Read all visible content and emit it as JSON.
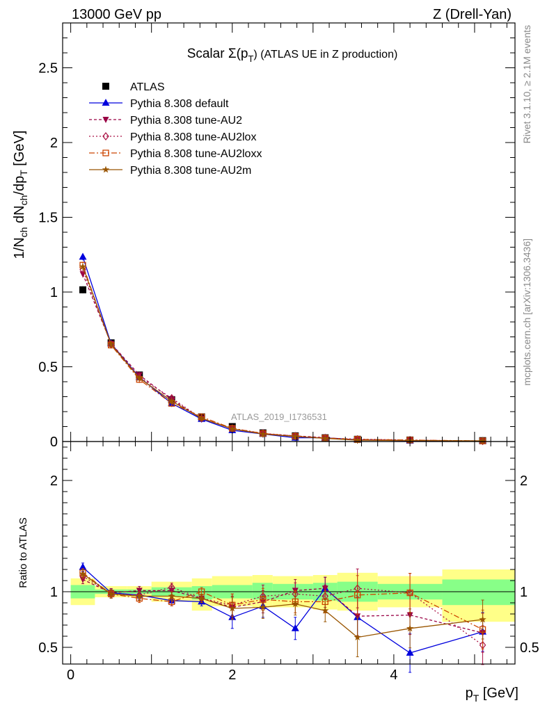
{
  "header": {
    "left": "13000 GeV pp",
    "right": "Z (Drell-Yan)"
  },
  "side_labels": {
    "rivet": "Rivet 3.1.10, ≥ 2.1M events",
    "mcplots": "mcplots.cern.ch [arXiv:1306.3436]"
  },
  "chart_data": [
    {
      "type": "line",
      "title": "Scalar Σ(p_T) (ATLAS UE in Z production)",
      "title_parts": {
        "main": "Scalar Σ(p",
        "sub": "T",
        "tail": ") (ATLAS UE in Z production)"
      },
      "ylabel": "1/N_ch dN_ch/dp_T [GeV]",
      "ylabel_parts": {
        "a": "1/N",
        "a_sub": "ch",
        "b": " dN",
        "b_sub": "ch",
        "c": "/dp",
        "c_sub": "T",
        "d": " [GeV]"
      },
      "xlim": [
        -0.1,
        5.5
      ],
      "ylim": [
        0,
        2.8
      ],
      "yticks": [
        0,
        0.5,
        1,
        1.5,
        2,
        2.5
      ],
      "ytick_labels": [
        "0",
        "0.5",
        "1",
        "1.5",
        "2",
        "2.5"
      ],
      "watermark": "ATLAS_2019_I1736531",
      "legend_position": "top-left",
      "x": [
        0.15,
        0.5,
        0.85,
        1.25,
        1.62,
        2.0,
        2.38,
        2.78,
        3.15,
        3.55,
        4.2,
        5.1
      ],
      "series": [
        {
          "name": "ATLAS",
          "color": "#000000",
          "marker": "square",
          "dash": "none",
          "values": [
            1.015,
            0.66,
            0.445,
            0.28,
            0.165,
            0.1,
            0.058,
            0.038,
            0.025,
            0.015,
            0.01,
            0.006
          ]
        },
        {
          "name": "Pythia 8.308 default",
          "color": "#0000dd",
          "marker": "triangle-up",
          "dash": "none",
          "values": [
            1.235,
            0.655,
            0.43,
            0.255,
            0.15,
            0.075,
            0.05,
            0.025,
            0.025,
            0.012,
            0.0045,
            0.0037
          ]
        },
        {
          "name": "Pythia 8.308 tune-AU2",
          "color": "#990044",
          "marker": "triangle-down",
          "dash": "4,3",
          "values": [
            1.12,
            0.655,
            0.445,
            0.28,
            0.155,
            0.085,
            0.052,
            0.038,
            0.026,
            0.0115,
            0.0079,
            0.004
          ]
        },
        {
          "name": "Pythia 8.308 tune-AU2lox",
          "color": "#aa1144",
          "marker": "diamond-open",
          "dash": "2,3",
          "values": [
            1.15,
            0.65,
            0.43,
            0.29,
            0.155,
            0.088,
            0.055,
            0.037,
            0.024,
            0.0155,
            0.0099,
            0.0032
          ]
        },
        {
          "name": "Pythia 8.308 tune-AU2loxx",
          "color": "#cc4400",
          "marker": "square-open",
          "dash": "8,3,2,3",
          "values": [
            1.18,
            0.645,
            0.415,
            0.255,
            0.165,
            0.088,
            0.054,
            0.035,
            0.023,
            0.0146,
            0.0099,
            0.004
          ]
        },
        {
          "name": "Pythia 8.308 tune-AU2m",
          "color": "#995500",
          "marker": "star",
          "dash": "none",
          "values": [
            1.17,
            0.65,
            0.425,
            0.27,
            0.155,
            0.085,
            0.05,
            0.034,
            0.021,
            0.0088,
            0.0067,
            0.0045
          ]
        }
      ]
    },
    {
      "type": "line",
      "ylabel": "Ratio to ATLAS",
      "xlabel": "p_T [GeV]",
      "xlabel_parts": {
        "a": "p",
        "sub": "T",
        "b": " [GeV]"
      },
      "xlim": [
        -0.1,
        5.5
      ],
      "ylim": [
        0.35,
        2.35
      ],
      "xticks": [
        0,
        2,
        4
      ],
      "xtick_labels": [
        "0",
        "2",
        "4"
      ],
      "yticks": [
        0.5,
        1,
        2
      ],
      "ytick_labels": [
        "0.5",
        "1",
        "2"
      ],
      "bin_edges": [
        0,
        0.3,
        0.7,
        1.0,
        1.5,
        1.75,
        2.25,
        2.5,
        3.0,
        3.3,
        3.8,
        4.6,
        5.5
      ],
      "bands": {
        "yellow_hi": [
          1.12,
          1.05,
          1.05,
          1.09,
          1.12,
          1.14,
          1.15,
          1.14,
          1.15,
          1.17,
          1.14,
          1.2
        ],
        "yellow_lo": [
          0.88,
          0.95,
          0.95,
          0.91,
          0.83,
          0.87,
          0.86,
          0.86,
          0.84,
          0.83,
          0.86,
          0.73
        ],
        "green_hi": [
          1.06,
          1.02,
          1.02,
          1.04,
          1.05,
          1.06,
          1.08,
          1.07,
          1.08,
          1.09,
          1.07,
          1.11
        ],
        "green_lo": [
          0.94,
          0.98,
          0.98,
          0.96,
          0.93,
          0.94,
          0.93,
          0.93,
          0.92,
          0.91,
          0.93,
          0.88
        ]
      },
      "series": [
        {
          "name": "Pythia 8.308 default",
          "values": [
            1.22,
            0.99,
            0.97,
            0.92,
            0.91,
            0.77,
            0.87,
            0.67,
            1.03,
            0.77,
            0.45,
            0.64
          ]
        },
        {
          "name": "Pythia 8.308 tune-AU2",
          "values": [
            1.11,
            0.99,
            1.01,
            1.01,
            0.94,
            0.86,
            0.91,
            1.01,
            1.03,
            0.78,
            0.79,
            0.63
          ]
        },
        {
          "name": "Pythia 8.308 tune-AU2lox",
          "values": [
            1.14,
            0.98,
            0.97,
            1.04,
            0.94,
            0.88,
            0.96,
            0.98,
            0.96,
            1.03,
            0.99,
            0.52
          ]
        },
        {
          "name": "Pythia 8.308 tune-AU2loxx",
          "values": [
            1.17,
            0.98,
            0.94,
            0.91,
            1.0,
            0.88,
            0.93,
            0.91,
            0.91,
            0.97,
            0.99,
            0.66
          ]
        },
        {
          "name": "Pythia 8.308 tune-AU2m",
          "values": [
            1.16,
            0.98,
            0.96,
            0.96,
            0.94,
            0.85,
            0.86,
            0.89,
            0.83,
            0.59,
            0.67,
            0.75
          ]
        }
      ]
    }
  ]
}
